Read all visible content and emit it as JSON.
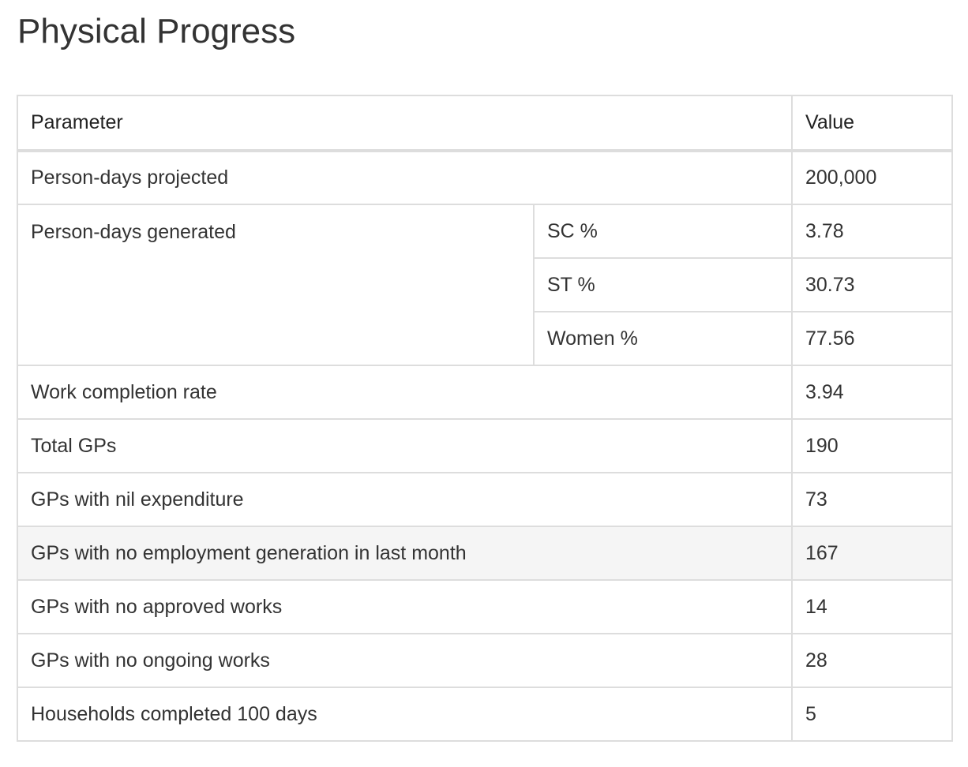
{
  "page": {
    "title": "Physical Progress"
  },
  "table": {
    "headers": {
      "parameter": "Parameter",
      "value": "Value"
    },
    "rows": {
      "projected": {
        "label": "Person-days projected",
        "value": "200,000"
      },
      "generated": {
        "label": "Person-days generated",
        "sub": [
          {
            "label": "SC %",
            "value": "3.78"
          },
          {
            "label": "ST %",
            "value": "30.73"
          },
          {
            "label": "Women %",
            "value": "77.56"
          }
        ]
      },
      "completion": {
        "label": "Work completion rate",
        "value": "3.94"
      },
      "total_gps": {
        "label": "Total GPs",
        "value": "190"
      },
      "nil_expenditure": {
        "label": "GPs with nil expenditure",
        "value": "73"
      },
      "no_employment": {
        "label": "GPs with no employment generation in last month",
        "value": "167"
      },
      "no_approved": {
        "label": "GPs with no approved works",
        "value": "14"
      },
      "no_ongoing": {
        "label": "GPs with no ongoing works",
        "value": "28"
      },
      "households_100": {
        "label": "Households completed 100 days",
        "value": "5"
      }
    }
  },
  "colors": {
    "border": "#dddddd",
    "hover_row": "#f5f5f5",
    "text": "#333333"
  }
}
